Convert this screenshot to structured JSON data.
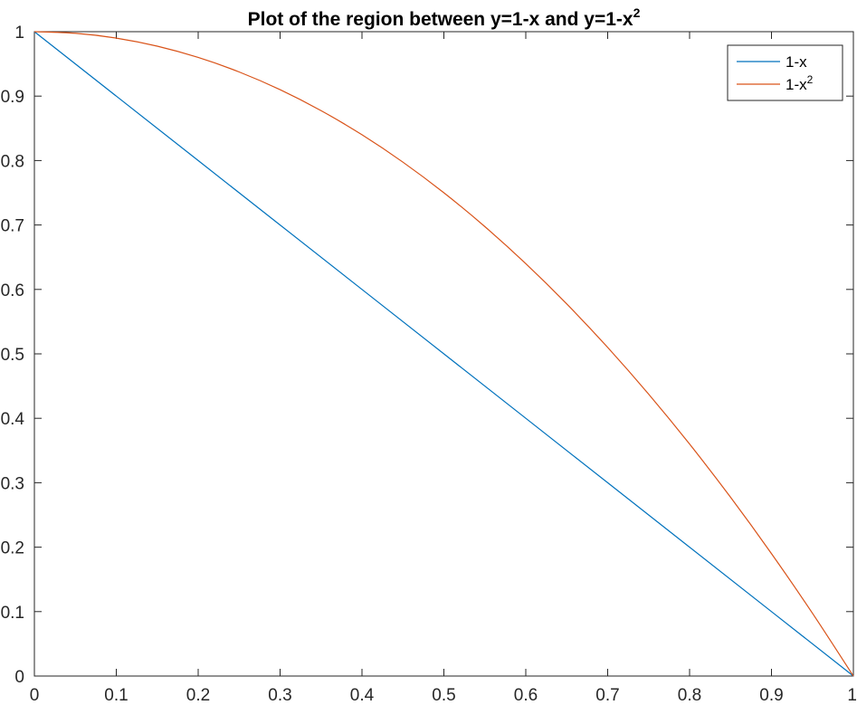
{
  "chart_data": {
    "type": "line",
    "title": {
      "main": "Plot of the region between y=1-x and y=1-x",
      "superscript": "2"
    },
    "xlabel": "",
    "ylabel": "",
    "xlim": [
      0,
      1
    ],
    "ylim": [
      0,
      1
    ],
    "x_ticks": [
      0,
      0.1,
      0.2,
      0.3,
      0.4,
      0.5,
      0.6,
      0.7,
      0.8,
      0.9,
      1
    ],
    "x_tick_labels": [
      "0",
      "0.1",
      "0.2",
      "0.3",
      "0.4",
      "0.5",
      "0.6",
      "0.7",
      "0.8",
      "0.9",
      "1"
    ],
    "y_ticks": [
      0,
      0.1,
      0.2,
      0.3,
      0.4,
      0.5,
      0.6,
      0.7,
      0.8,
      0.9,
      1
    ],
    "y_tick_labels": [
      "0",
      "0.1",
      "0.2",
      "0.3",
      "0.4",
      "0.5",
      "0.6",
      "0.7",
      "0.8",
      "0.9",
      "1"
    ],
    "grid": false,
    "legend_position": "top-right",
    "series": [
      {
        "name": "1-x",
        "color": "#0072BD",
        "x": [
          0,
          0.1,
          0.2,
          0.3,
          0.4,
          0.5,
          0.6,
          0.7,
          0.8,
          0.9,
          1
        ],
        "y": [
          1,
          0.9,
          0.8,
          0.7,
          0.6,
          0.5,
          0.4,
          0.3,
          0.2,
          0.1,
          0
        ]
      },
      {
        "name": "1-x",
        "name_superscript": "2",
        "color": "#D95319",
        "x": [
          0,
          0.05,
          0.1,
          0.15,
          0.2,
          0.25,
          0.3,
          0.35,
          0.4,
          0.45,
          0.5,
          0.55,
          0.6,
          0.65,
          0.7,
          0.75,
          0.8,
          0.85,
          0.9,
          0.95,
          1
        ],
        "y": [
          1,
          0.9975,
          0.99,
          0.9775,
          0.96,
          0.9375,
          0.91,
          0.8775,
          0.84,
          0.7975,
          0.75,
          0.6975,
          0.64,
          0.5775,
          0.51,
          0.4375,
          0.36,
          0.2775,
          0.19,
          0.0975,
          0
        ]
      }
    ]
  }
}
